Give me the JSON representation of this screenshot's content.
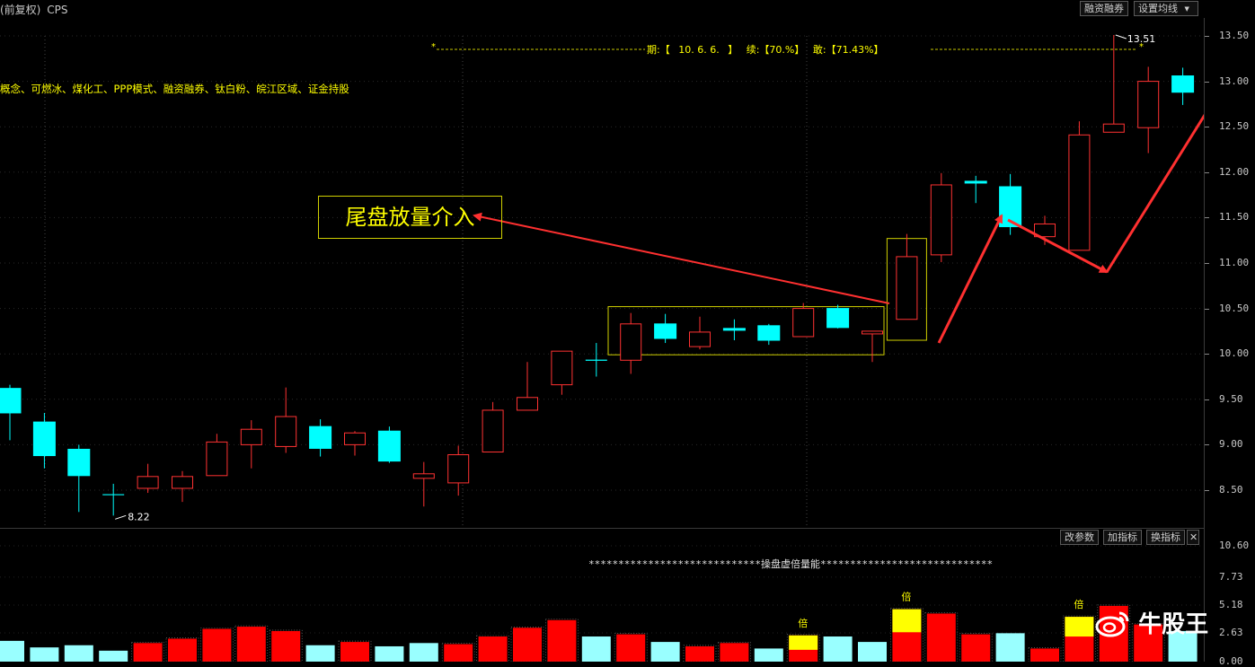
{
  "header": {
    "title": "(前复权)",
    "indicator": "CPS",
    "btn_margin": "融资融券",
    "btn_ma": "设置均线",
    "dropdown_arrow": "▼"
  },
  "concepts": "概念、可燃冰、煤化工、PPP模式、融资融券、钛白粉、皖江区域、证金持股",
  "stats": {
    "prefix": "*",
    "dashes1": "----------------------------------------------------",
    "period_label": "期:【",
    "period_value": "10.  6.  6.",
    "period_close": "】",
    "cont_label": "续:【",
    "cont_value": "70.%",
    "cont_close": "】",
    "dare_label": "敢:【",
    "dare_value": "71.43%",
    "dare_close": "】",
    "dashes2": "--------------------------------------------------------",
    "suffix": "*"
  },
  "annotation": "尾盘放量介入",
  "markers": {
    "low_label": "8.22",
    "high_label": "13.51"
  },
  "price_axis": [
    "13.50",
    "13.00",
    "12.50",
    "12.00",
    "11.50",
    "11.00",
    "10.50",
    "10.00",
    "9.50",
    "9.00",
    "8.50"
  ],
  "volume_panel": {
    "buttons": [
      "改参数",
      "加指标",
      "换指标"
    ],
    "close_icon": "✕",
    "title": "*****************************操盘虚倍量能*****************************",
    "bei_label": "倍",
    "axis": [
      "10.60",
      "7.73",
      "5.18",
      "2.63",
      "0.00"
    ]
  },
  "watermark": "牛股王",
  "colors": {
    "up": "#ff3232",
    "down": "#00ffff",
    "vol_up": "#ff0000",
    "vol_down": "#99ffff",
    "bei_highlight": "#ffff00",
    "annotation_arrow": "#ff3030"
  },
  "chart_data": {
    "type": "candlestick",
    "ylim": [
      8.2,
      13.6
    ],
    "low_marker": 8.22,
    "high_marker": 13.51,
    "candles": [
      {
        "o": 9.62,
        "c": 9.35,
        "h": 9.66,
        "l": 9.05,
        "d": "down"
      },
      {
        "o": 9.25,
        "c": 8.88,
        "h": 9.35,
        "l": 8.74,
        "d": "down"
      },
      {
        "o": 8.95,
        "c": 8.66,
        "h": 9.0,
        "l": 8.26,
        "d": "down"
      },
      {
        "o": 8.45,
        "c": 8.45,
        "h": 8.57,
        "l": 8.22,
        "d": "cross"
      },
      {
        "o": 8.52,
        "c": 8.65,
        "h": 8.79,
        "l": 8.47,
        "d": "up"
      },
      {
        "o": 8.52,
        "c": 8.65,
        "h": 8.71,
        "l": 8.37,
        "d": "up"
      },
      {
        "o": 8.66,
        "c": 9.03,
        "h": 9.12,
        "l": 8.66,
        "d": "up"
      },
      {
        "o": 9.0,
        "c": 9.17,
        "h": 9.27,
        "l": 8.74,
        "d": "up"
      },
      {
        "o": 8.98,
        "c": 9.31,
        "h": 9.63,
        "l": 8.91,
        "d": "up"
      },
      {
        "o": 9.2,
        "c": 8.96,
        "h": 9.28,
        "l": 8.87,
        "d": "down"
      },
      {
        "o": 9.0,
        "c": 9.13,
        "h": 9.15,
        "l": 8.88,
        "d": "up"
      },
      {
        "o": 9.15,
        "c": 8.82,
        "h": 9.2,
        "l": 8.8,
        "d": "down"
      },
      {
        "o": 8.63,
        "c": 8.68,
        "h": 8.81,
        "l": 8.32,
        "d": "up"
      },
      {
        "o": 8.58,
        "c": 8.89,
        "h": 8.99,
        "l": 8.44,
        "d": "up"
      },
      {
        "o": 8.92,
        "c": 9.38,
        "h": 9.47,
        "l": 8.92,
        "d": "up"
      },
      {
        "o": 9.38,
        "c": 9.52,
        "h": 9.91,
        "l": 9.38,
        "d": "up"
      },
      {
        "o": 9.66,
        "c": 10.03,
        "h": 10.03,
        "l": 9.55,
        "d": "up"
      },
      {
        "o": 9.93,
        "c": 9.93,
        "h": 10.12,
        "l": 9.75,
        "d": "cross"
      },
      {
        "o": 9.93,
        "c": 10.33,
        "h": 10.45,
        "l": 9.78,
        "d": "up"
      },
      {
        "o": 10.33,
        "c": 10.17,
        "h": 10.44,
        "l": 10.12,
        "d": "down"
      },
      {
        "o": 10.08,
        "c": 10.24,
        "h": 10.41,
        "l": 10.05,
        "d": "up"
      },
      {
        "o": 10.28,
        "c": 10.26,
        "h": 10.38,
        "l": 10.15,
        "d": "down"
      },
      {
        "o": 10.31,
        "c": 10.15,
        "h": 10.33,
        "l": 10.1,
        "d": "down"
      },
      {
        "o": 10.19,
        "c": 10.5,
        "h": 10.56,
        "l": 10.19,
        "d": "up"
      },
      {
        "o": 10.5,
        "c": 10.29,
        "h": 10.54,
        "l": 10.28,
        "d": "down"
      },
      {
        "o": 10.22,
        "c": 10.25,
        "h": 10.25,
        "l": 9.91,
        "d": "up"
      },
      {
        "o": 10.38,
        "c": 11.07,
        "h": 11.32,
        "l": 10.38,
        "d": "up"
      },
      {
        "o": 11.09,
        "c": 11.86,
        "h": 11.99,
        "l": 11.01,
        "d": "up"
      },
      {
        "o": 11.9,
        "c": 11.88,
        "h": 11.96,
        "l": 11.66,
        "d": "down"
      },
      {
        "o": 11.84,
        "c": 11.4,
        "h": 11.98,
        "l": 11.31,
        "d": "down"
      },
      {
        "o": 11.29,
        "c": 11.43,
        "h": 11.52,
        "l": 11.2,
        "d": "up"
      },
      {
        "o": 11.14,
        "c": 12.41,
        "h": 12.56,
        "l": 11.14,
        "d": "up"
      },
      {
        "o": 12.44,
        "c": 12.53,
        "h": 13.51,
        "l": 12.44,
        "d": "up"
      },
      {
        "o": 12.49,
        "c": 13.0,
        "h": 13.16,
        "l": 12.21,
        "d": "up"
      },
      {
        "o": 13.06,
        "c": 12.88,
        "h": 13.15,
        "l": 12.74,
        "d": "down"
      }
    ],
    "volume": {
      "ylim": [
        0,
        10.6
      ],
      "bars": [
        {
          "v": 1.9,
          "d": "down"
        },
        {
          "v": 1.3,
          "d": "down"
        },
        {
          "v": 1.5,
          "d": "down"
        },
        {
          "v": 1.0,
          "d": "down"
        },
        {
          "v": 1.7,
          "d": "up"
        },
        {
          "v": 2.1,
          "d": "up"
        },
        {
          "v": 3.0,
          "d": "up"
        },
        {
          "v": 3.2,
          "d": "up"
        },
        {
          "v": 2.8,
          "d": "up"
        },
        {
          "v": 1.5,
          "d": "down"
        },
        {
          "v": 1.8,
          "d": "up"
        },
        {
          "v": 1.4,
          "d": "down"
        },
        {
          "v": 1.7,
          "d": "down"
        },
        {
          "v": 1.6,
          "d": "up"
        },
        {
          "v": 2.3,
          "d": "up"
        },
        {
          "v": 3.1,
          "d": "up"
        },
        {
          "v": 3.8,
          "d": "up"
        },
        {
          "v": 2.3,
          "d": "down"
        },
        {
          "v": 2.5,
          "d": "up"
        },
        {
          "v": 1.8,
          "d": "down"
        },
        {
          "v": 1.4,
          "d": "up"
        },
        {
          "v": 1.7,
          "d": "up"
        },
        {
          "v": 1.2,
          "d": "down"
        },
        {
          "v": 2.4,
          "d": "up",
          "bei": 0.5
        },
        {
          "v": 2.3,
          "d": "down"
        },
        {
          "v": 1.8,
          "d": "down"
        },
        {
          "v": 4.8,
          "d": "up",
          "bei": 0.4
        },
        {
          "v": 4.4,
          "d": "up"
        },
        {
          "v": 2.5,
          "d": "up"
        },
        {
          "v": 2.6,
          "d": "down"
        },
        {
          "v": 1.2,
          "d": "up"
        },
        {
          "v": 4.1,
          "d": "up",
          "bei": 0.4
        },
        {
          "v": 5.1,
          "d": "up"
        },
        {
          "v": 3.4,
          "d": "up"
        },
        {
          "v": 2.8,
          "d": "down"
        }
      ]
    }
  }
}
